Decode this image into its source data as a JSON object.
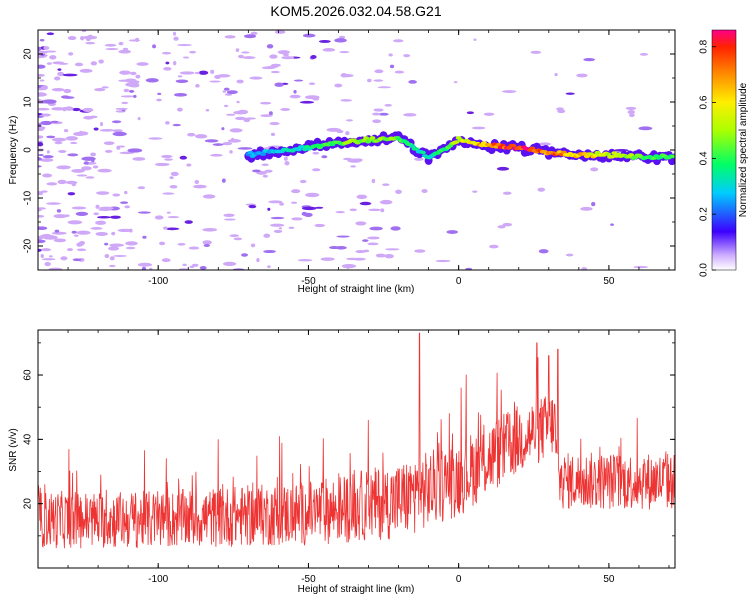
{
  "chart_data": [
    {
      "type": "heatmap",
      "title": "KOM5.2026.032.04.58.G21",
      "xlabel": "Height of straight line (km)",
      "ylabel": "Frequency (Hz)",
      "xlim": [
        -140,
        72
      ],
      "ylim": [
        -25,
        25
      ],
      "xticks": [
        -100,
        -50,
        0,
        50
      ],
      "yticks": [
        -20,
        -10,
        0,
        10,
        20
      ],
      "colorbar": {
        "label": "Normalized spectral amplitude",
        "range": [
          0.0,
          0.86
        ],
        "ticks": [
          0.0,
          0.2,
          0.4,
          0.6,
          0.8
        ],
        "tick_labels": [
          "0.0",
          "0.2",
          "0.4",
          "0.6",
          "0.8"
        ]
      },
      "signal_trace": [
        {
          "x": -70,
          "y": -1.0,
          "v": 0.25
        },
        {
          "x": -50,
          "y": 0.5,
          "v": 0.35
        },
        {
          "x": -40,
          "y": 1.5,
          "v": 0.45
        },
        {
          "x": -30,
          "y": 2.0,
          "v": 0.5
        },
        {
          "x": -20,
          "y": 2.5,
          "v": 0.45
        },
        {
          "x": -15,
          "y": 0.5,
          "v": 0.35
        },
        {
          "x": -10,
          "y": -1.5,
          "v": 0.3
        },
        {
          "x": -5,
          "y": 0.0,
          "v": 0.4
        },
        {
          "x": 0,
          "y": 2.0,
          "v": 0.55
        },
        {
          "x": 10,
          "y": 1.0,
          "v": 0.7
        },
        {
          "x": 20,
          "y": 0.5,
          "v": 0.85
        },
        {
          "x": 30,
          "y": -0.5,
          "v": 0.75
        },
        {
          "x": 40,
          "y": -1.0,
          "v": 0.65
        },
        {
          "x": 50,
          "y": -1.0,
          "v": 0.55
        },
        {
          "x": 60,
          "y": -1.5,
          "v": 0.45
        },
        {
          "x": 72,
          "y": -1.5,
          "v": 0.4
        }
      ]
    },
    {
      "type": "line",
      "title": "",
      "xlabel": "Height of straight line (km)",
      "ylabel": "SNR (v/v)",
      "xlim": [
        -140,
        72
      ],
      "ylim": [
        0,
        74
      ],
      "xticks": [
        -100,
        -50,
        0,
        50
      ],
      "yticks": [
        20,
        40,
        60
      ],
      "series": [
        {
          "name": "SNR",
          "color": "#ee3333",
          "trend": [
            {
              "x": -140,
              "mean": 15,
              "spread": 9
            },
            {
              "x": -100,
              "mean": 15,
              "spread": 9
            },
            {
              "x": -50,
              "mean": 17,
              "spread": 10
            },
            {
              "x": -20,
              "mean": 21,
              "spread": 12
            },
            {
              "x": 0,
              "mean": 28,
              "spread": 12
            },
            {
              "x": 20,
              "mean": 40,
              "spread": 11
            },
            {
              "x": 32,
              "mean": 45,
              "spread": 10
            },
            {
              "x": 33,
              "mean": 27,
              "spread": 9
            },
            {
              "x": 72,
              "mean": 27,
              "spread": 9
            }
          ],
          "peaks": [
            {
              "x": -13,
              "y": 73
            },
            {
              "x": 26,
              "y": 70
            },
            {
              "x": 33,
              "y": 68
            },
            {
              "x": 30,
              "y": 66
            }
          ]
        }
      ]
    }
  ],
  "palette": {
    "signal_line": "#ee3333",
    "noise_light": "#cfa8f8",
    "noise_mid": "#a070f0",
    "noise_dark": "#6a20e0"
  }
}
